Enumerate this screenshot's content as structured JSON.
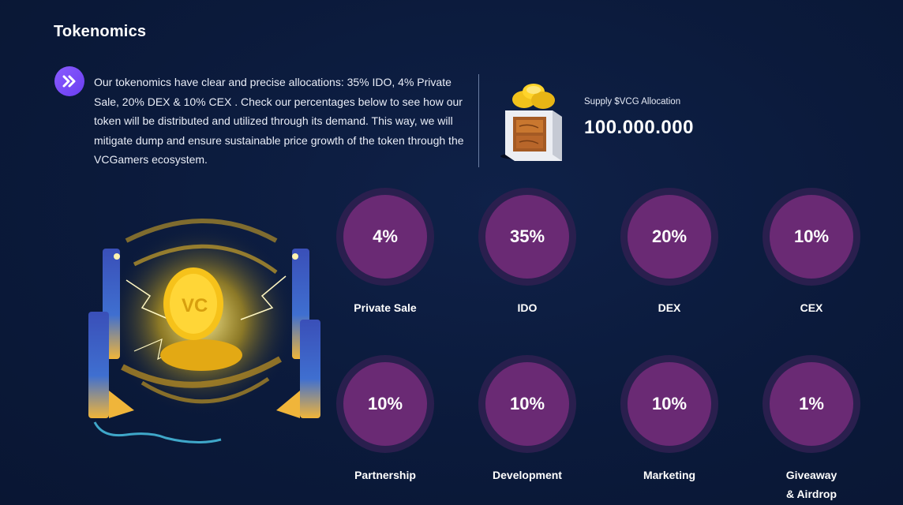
{
  "section": {
    "title": "Tokenomics",
    "intro": "Our tokenomics have clear and precise allocations: 35% IDO, 4% Private Sale, 20% DEX & 10% CEX . Check our percentages below to see how our token will be distributed and utilized through its demand. This way, we will mitigate dump and ensure sustainable price growth of the token through the VCGamers ecosystem."
  },
  "supply": {
    "label": "Supply $VCG Allocation",
    "value": "100.000.000"
  },
  "allocations": [
    {
      "percent": "4%",
      "label": "Private Sale"
    },
    {
      "percent": "35%",
      "label": "IDO"
    },
    {
      "percent": "20%",
      "label": "DEX"
    },
    {
      "percent": "10%",
      "label": "CEX"
    },
    {
      "percent": "10%",
      "label": "Partnership"
    },
    {
      "percent": "10%",
      "label": "Development"
    },
    {
      "percent": "10%",
      "label": "Marketing"
    },
    {
      "percent": "1%",
      "label": "Giveaway\n& Airdrop"
    }
  ],
  "icons": {
    "intro": "double-chevron-right-icon",
    "supply": "treasure-chest-icon",
    "illustration": "vc-coin-portal-icon"
  },
  "colors": {
    "background": "#0b1a3b",
    "accent": "#7c4dff",
    "circle": "#6a2a74",
    "ring": "#2a1f4e"
  }
}
